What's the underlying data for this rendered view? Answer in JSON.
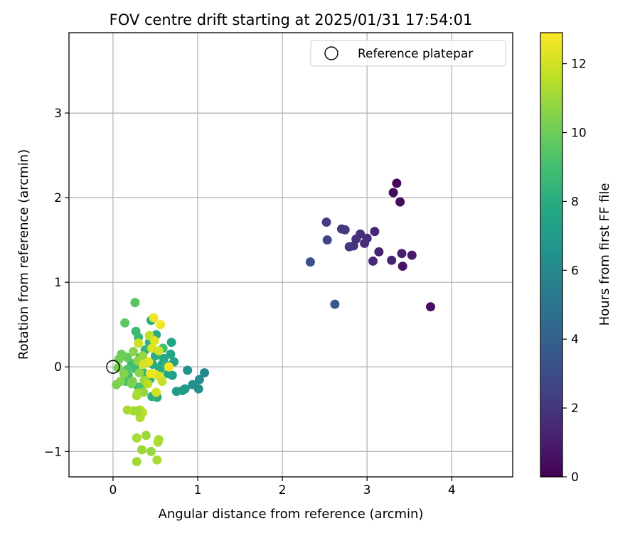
{
  "chart_data": {
    "type": "scatter",
    "title": "FOV centre drift starting at 2025/01/31 17:54:01",
    "xlabel": "Angular distance from reference (arcmin)",
    "ylabel": "Rotation from reference (arcmin)",
    "xlim": [
      -0.52,
      4.72
    ],
    "ylim": [
      -1.3,
      3.95
    ],
    "xticks": [
      0,
      1,
      2,
      3,
      4
    ],
    "yticks": [
      -1,
      0,
      1,
      2,
      3
    ],
    "xtick_labels": [
      "0",
      "1",
      "2",
      "3",
      "4"
    ],
    "ytick_labels": [
      "−1",
      "0",
      "1",
      "2",
      "3"
    ],
    "grid": true,
    "legend": {
      "position": "top-right",
      "label": "Reference platepar"
    },
    "reference_point": {
      "x": 0,
      "y": 0
    },
    "colorbar": {
      "label": "Hours from first FF file",
      "min": 0,
      "max": 12.9,
      "ticks": [
        0,
        2,
        4,
        6,
        8,
        10,
        12
      ],
      "tick_labels": [
        "0",
        "2",
        "4",
        "6",
        "8",
        "10",
        "12"
      ],
      "colormap": "viridis"
    },
    "points": [
      {
        "x": 3.35,
        "y": 2.17,
        "h": 0.2
      },
      {
        "x": 3.31,
        "y": 2.06,
        "h": 0.3
      },
      {
        "x": 3.39,
        "y": 1.95,
        "h": 0.4
      },
      {
        "x": 3.75,
        "y": 0.71,
        "h": 0.5
      },
      {
        "x": 3.42,
        "y": 1.19,
        "h": 0.7
      },
      {
        "x": 3.53,
        "y": 1.32,
        "h": 1.0
      },
      {
        "x": 3.41,
        "y": 1.34,
        "h": 1.1
      },
      {
        "x": 3.29,
        "y": 1.26,
        "h": 1.2
      },
      {
        "x": 3.14,
        "y": 1.36,
        "h": 1.3
      },
      {
        "x": 3.09,
        "y": 1.6,
        "h": 1.4
      },
      {
        "x": 3.07,
        "y": 1.25,
        "h": 1.5
      },
      {
        "x": 3.0,
        "y": 1.52,
        "h": 1.6
      },
      {
        "x": 2.97,
        "y": 1.46,
        "h": 1.7
      },
      {
        "x": 2.92,
        "y": 1.57,
        "h": 1.7
      },
      {
        "x": 2.87,
        "y": 1.51,
        "h": 1.8
      },
      {
        "x": 2.84,
        "y": 1.43,
        "h": 1.9
      },
      {
        "x": 2.79,
        "y": 1.42,
        "h": 2.0
      },
      {
        "x": 2.74,
        "y": 1.62,
        "h": 2.1
      },
      {
        "x": 2.7,
        "y": 1.63,
        "h": 2.2
      },
      {
        "x": 2.52,
        "y": 1.71,
        "h": 2.3
      },
      {
        "x": 2.53,
        "y": 1.5,
        "h": 2.5
      },
      {
        "x": 2.33,
        "y": 1.24,
        "h": 3.2
      },
      {
        "x": 2.62,
        "y": 0.74,
        "h": 3.5
      },
      {
        "x": 1.08,
        "y": -0.07,
        "h": 6.0
      },
      {
        "x": 1.02,
        "y": -0.15,
        "h": 6.2
      },
      {
        "x": 0.94,
        "y": -0.21,
        "h": 6.4
      },
      {
        "x": 1.01,
        "y": -0.26,
        "h": 6.3
      },
      {
        "x": 0.88,
        "y": -0.04,
        "h": 6.6
      },
      {
        "x": 0.85,
        "y": -0.26,
        "h": 6.8
      },
      {
        "x": 0.82,
        "y": -0.28,
        "h": 7.0
      },
      {
        "x": 0.75,
        "y": -0.29,
        "h": 7.2
      },
      {
        "x": 0.7,
        "y": -0.1,
        "h": 7.3
      },
      {
        "x": 0.72,
        "y": 0.06,
        "h": 7.4
      },
      {
        "x": 0.68,
        "y": 0.15,
        "h": 7.5
      },
      {
        "x": 0.69,
        "y": 0.29,
        "h": 7.6
      },
      {
        "x": 0.65,
        "y": -0.08,
        "h": 7.7
      },
      {
        "x": 0.6,
        "y": 0.1,
        "h": 7.8
      },
      {
        "x": 0.58,
        "y": 0.03,
        "h": 7.8
      },
      {
        "x": 0.55,
        "y": -0.03,
        "h": 7.9
      },
      {
        "x": 0.51,
        "y": 0.38,
        "h": 7.9
      },
      {
        "x": 0.5,
        "y": 0.13,
        "h": 8.0
      },
      {
        "x": 0.45,
        "y": 0.55,
        "h": 8.0
      },
      {
        "x": 0.47,
        "y": 0.03,
        "h": 8.1
      },
      {
        "x": 0.44,
        "y": -0.14,
        "h": 8.2
      },
      {
        "x": 0.43,
        "y": 0.29,
        "h": 8.3
      },
      {
        "x": 0.38,
        "y": 0.2,
        "h": 8.4
      },
      {
        "x": 0.36,
        "y": -0.07,
        "h": 8.5
      },
      {
        "x": 0.32,
        "y": 0.11,
        "h": 8.6
      },
      {
        "x": 0.3,
        "y": 0.35,
        "h": 8.7
      },
      {
        "x": 0.27,
        "y": 0.42,
        "h": 8.7
      },
      {
        "x": 0.26,
        "y": -0.02,
        "h": 8.8
      },
      {
        "x": 0.22,
        "y": 0.04,
        "h": 8.9
      },
      {
        "x": 0.18,
        "y": -0.1,
        "h": 9.0
      },
      {
        "x": 0.15,
        "y": -0.17,
        "h": 9.1
      },
      {
        "x": 0.52,
        "y": -0.36,
        "h": 8.0
      },
      {
        "x": 0.46,
        "y": -0.35,
        "h": 8.2
      },
      {
        "x": 0.3,
        "y": -0.24,
        "h": 8.6
      },
      {
        "x": 0.33,
        "y": -0.25,
        "h": 9.2
      },
      {
        "x": 0.59,
        "y": 0.22,
        "h": 8.9
      },
      {
        "x": 0.63,
        "y": 0.02,
        "h": 8.4
      },
      {
        "x": 0.17,
        "y": -0.03,
        "h": 9.3
      },
      {
        "x": 0.26,
        "y": 0.76,
        "h": 9.5
      },
      {
        "x": 0.14,
        "y": 0.52,
        "h": 9.6
      },
      {
        "x": 0.17,
        "y": 0.11,
        "h": 9.8
      },
      {
        "x": 0.12,
        "y": 0.13,
        "h": 9.9
      },
      {
        "x": 0.1,
        "y": 0.15,
        "h": 10.0
      },
      {
        "x": 0.07,
        "y": 0.09,
        "h": 10.1
      },
      {
        "x": 0.06,
        "y": -0.01,
        "h": 10.2
      },
      {
        "x": 0.04,
        "y": -0.21,
        "h": 10.3
      },
      {
        "x": 0.09,
        "y": -0.17,
        "h": 10.4
      },
      {
        "x": 0.23,
        "y": -0.17,
        "h": 10.4
      },
      {
        "x": 0.22,
        "y": -0.2,
        "h": 10.3
      },
      {
        "x": 0.13,
        "y": -0.08,
        "h": 10.5
      },
      {
        "x": 0.24,
        "y": 0.18,
        "h": 10.6
      },
      {
        "x": 0.29,
        "y": 0.07,
        "h": 10.7
      },
      {
        "x": 0.31,
        "y": -0.07,
        "h": 10.6
      },
      {
        "x": 0.36,
        "y": -0.3,
        "h": 10.8
      },
      {
        "x": 0.35,
        "y": 0.13,
        "h": 10.8
      },
      {
        "x": 0.4,
        "y": 0.05,
        "h": 11.0
      },
      {
        "x": 0.28,
        "y": -0.34,
        "h": 11.1
      },
      {
        "x": 0.29,
        "y": -0.31,
        "h": 11.2
      },
      {
        "x": 0.37,
        "y": -0.16,
        "h": 10.9
      },
      {
        "x": 0.17,
        "y": -0.51,
        "h": 11.2
      },
      {
        "x": 0.24,
        "y": -0.52,
        "h": 11.3
      },
      {
        "x": 0.32,
        "y": -0.51,
        "h": 11.4
      },
      {
        "x": 0.35,
        "y": -0.54,
        "h": 11.5
      },
      {
        "x": 0.32,
        "y": -0.6,
        "h": 11.3
      },
      {
        "x": 0.28,
        "y": -0.52,
        "h": 11.1
      },
      {
        "x": 0.39,
        "y": -0.81,
        "h": 11.0
      },
      {
        "x": 0.28,
        "y": -0.84,
        "h": 11.2
      },
      {
        "x": 0.54,
        "y": -0.86,
        "h": 11.1
      },
      {
        "x": 0.53,
        "y": -0.89,
        "h": 11.3
      },
      {
        "x": 0.34,
        "y": -0.98,
        "h": 11.0
      },
      {
        "x": 0.45,
        "y": -1.0,
        "h": 10.9
      },
      {
        "x": 0.28,
        "y": -1.12,
        "h": 11.1
      },
      {
        "x": 0.52,
        "y": -1.1,
        "h": 11.2
      },
      {
        "x": 0.43,
        "y": 0.37,
        "h": 11.7
      },
      {
        "x": 0.3,
        "y": 0.28,
        "h": 11.9
      },
      {
        "x": 0.49,
        "y": 0.31,
        "h": 12.2
      },
      {
        "x": 0.48,
        "y": 0.58,
        "h": 12.6
      },
      {
        "x": 0.56,
        "y": 0.5,
        "h": 12.7
      },
      {
        "x": 0.46,
        "y": 0.22,
        "h": 12.3
      },
      {
        "x": 0.54,
        "y": 0.19,
        "h": 12.0
      },
      {
        "x": 0.42,
        "y": 0.06,
        "h": 12.4
      },
      {
        "x": 0.36,
        "y": 0.03,
        "h": 12.1
      },
      {
        "x": 0.44,
        "y": -0.08,
        "h": 12.5
      },
      {
        "x": 0.5,
        "y": -0.09,
        "h": 12.6
      },
      {
        "x": 0.55,
        "y": -0.11,
        "h": 12.2
      },
      {
        "x": 0.66,
        "y": 0.0,
        "h": 12.8
      },
      {
        "x": 0.51,
        "y": -0.3,
        "h": 12.0
      },
      {
        "x": 0.58,
        "y": -0.17,
        "h": 11.8
      },
      {
        "x": 0.41,
        "y": -0.2,
        "h": 11.6
      }
    ]
  }
}
